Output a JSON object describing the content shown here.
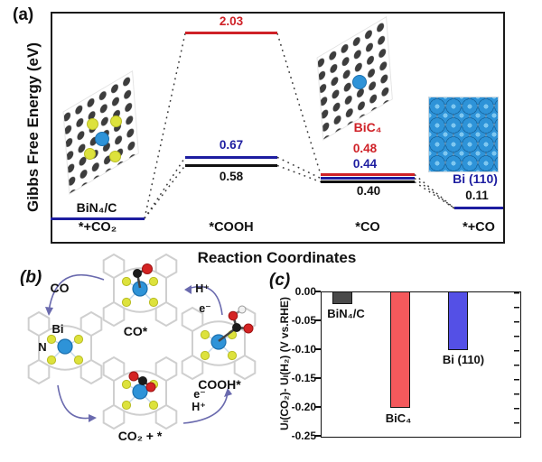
{
  "figure": {
    "panel_a_label": "(a)",
    "panel_b_label": "(b)",
    "panel_c_label": "(c)"
  },
  "panel_a": {
    "y_axis_label": "Gibbs Free Energy (eV)",
    "x_axis_label": "Reaction Coordinates",
    "state_labels": [
      "*+CO₂",
      "*COOH",
      "*CO",
      "*+CO"
    ],
    "inset_labels": {
      "bin4c": "BiN₄/C",
      "bic4": "BiC₄",
      "bi110": "Bi (110)"
    },
    "value_labels": {
      "cooh_bic4": "2.03",
      "cooh_bi110": "0.67",
      "cooh_bin4c": "0.58",
      "co_bic4": "0.48",
      "co_bi110": "0.44",
      "co_bin4c": "0.40",
      "final": "0.11"
    }
  },
  "panel_b": {
    "species_labels": {
      "released_co": "CO",
      "bare_metal": "Bi",
      "bare_nitrogen": "N",
      "co_adsorbed": "CO*",
      "cooh_adsorbed": "COOH*",
      "co2_adsorbed": "CO₂ + *"
    },
    "step_labels": {
      "top_right_proton": "H⁺",
      "top_right_electron": "e⁻",
      "bottom_right_electron": "e⁻",
      "bottom_right_proton": "H⁺"
    }
  },
  "panel_c": {
    "y_axis_label": "Uₗ(CO₂)- Uₗ(H₂) (V vs.RHE)",
    "tick_labels": [
      "0.00",
      "-0.05",
      "-0.10",
      "-0.15",
      "-0.20",
      "-0.25"
    ],
    "bar_labels": [
      "BiN₄/C",
      "BiC₄",
      "Bi (110)"
    ]
  },
  "colors": {
    "energy_red": "#cf2127",
    "energy_blue": "#1d1da0",
    "energy_black": "#111111",
    "bar_gray": "#4a4a4a",
    "bar_red": "#f4595c",
    "bar_blue": "#5450e6",
    "atom_blue": "#2e93d8",
    "atom_yellow": "#dde23c",
    "atom_carbon": "#3d3d3d",
    "atom_oxygen": "#d42323",
    "arrow": "#6a6aae"
  },
  "chart_data": [
    {
      "type": "line",
      "variant": "free-energy-step-diagram",
      "xlabel": "Reaction Coordinates",
      "ylabel": "Gibbs Free Energy (eV)",
      "categories": [
        "*+CO₂",
        "*COOH",
        "*CO",
        "*+CO"
      ],
      "series": [
        {
          "name": "BiN₄/C",
          "color": "#111111",
          "values": [
            0.0,
            0.58,
            0.4,
            0.11
          ]
        },
        {
          "name": "BiC₄",
          "color": "#cf2127",
          "values": [
            0.0,
            2.03,
            0.48,
            0.11
          ]
        },
        {
          "name": "Bi (110)",
          "color": "#1d1da0",
          "values": [
            0.0,
            0.67,
            0.44,
            0.11
          ]
        }
      ],
      "units": "eV",
      "legend_position": "inline-insets",
      "grid": false
    },
    {
      "type": "bar",
      "categories": [
        "BiN₄/C",
        "BiC₄",
        "Bi (110)"
      ],
      "values": [
        -0.02,
        -0.2,
        -0.1
      ],
      "colors": [
        "#4a4a4a",
        "#f4595c",
        "#5450e6"
      ],
      "ylabel": "Uₗ(CO₂)- Uₗ(H₂) (V vs.RHE)",
      "ylim": [
        -0.25,
        0.0
      ],
      "ytick_step": 0.05,
      "grid": false
    }
  ]
}
